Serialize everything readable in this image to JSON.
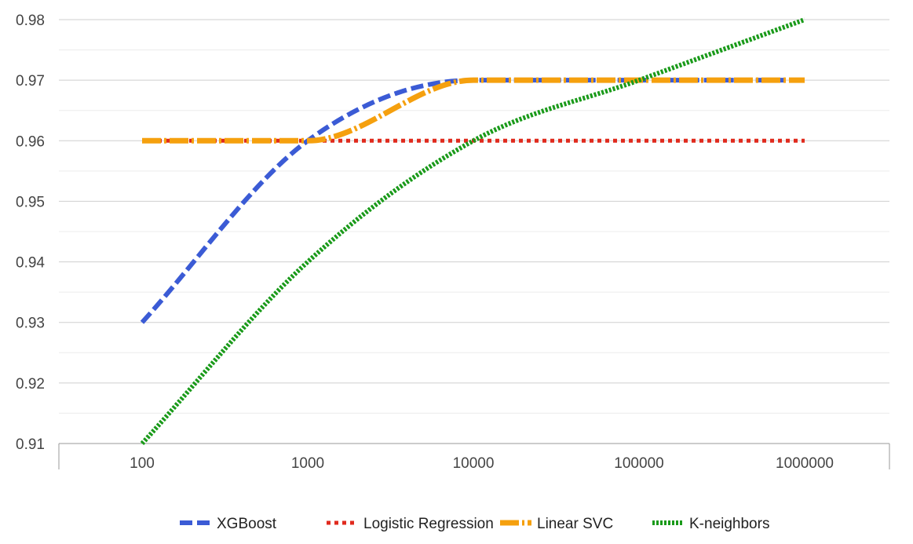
{
  "chart_data": {
    "type": "line",
    "x_scale": "log",
    "x": [
      100,
      1000,
      10000,
      100000,
      1000000
    ],
    "x_tick_labels": [
      "100",
      "1000",
      "10000",
      "100000",
      "1000000"
    ],
    "ylim": [
      0.91,
      0.98
    ],
    "y_ticks": [
      0.91,
      0.92,
      0.93,
      0.94,
      0.95,
      0.96,
      0.97,
      0.98
    ],
    "y_tick_labels": [
      "0.91",
      "0.92",
      "0.93",
      "0.94",
      "0.95",
      "0.96",
      "0.97",
      "0.98"
    ],
    "grid": true,
    "legend_position": "bottom",
    "title": "",
    "xlabel": "",
    "ylabel": "",
    "series": [
      {
        "name": "XGBoost",
        "color": "#3b5bd5",
        "dash": "dashed",
        "values": [
          0.93,
          0.96,
          0.97,
          0.97,
          0.97
        ]
      },
      {
        "name": "Logistic Regression",
        "color": "#e02a1d",
        "dash": "dotted",
        "values": [
          0.96,
          0.96,
          0.96,
          0.96,
          0.96
        ]
      },
      {
        "name": "Linear SVC",
        "color": "#f5a00e",
        "dash": "dash-dot",
        "values": [
          0.96,
          0.96,
          0.97,
          0.97,
          0.97
        ]
      },
      {
        "name": "K-neighbors",
        "color": "#1a9a1a",
        "dash": "dense-dotted",
        "values": [
          0.91,
          0.94,
          0.96,
          0.97,
          0.98
        ]
      }
    ]
  }
}
